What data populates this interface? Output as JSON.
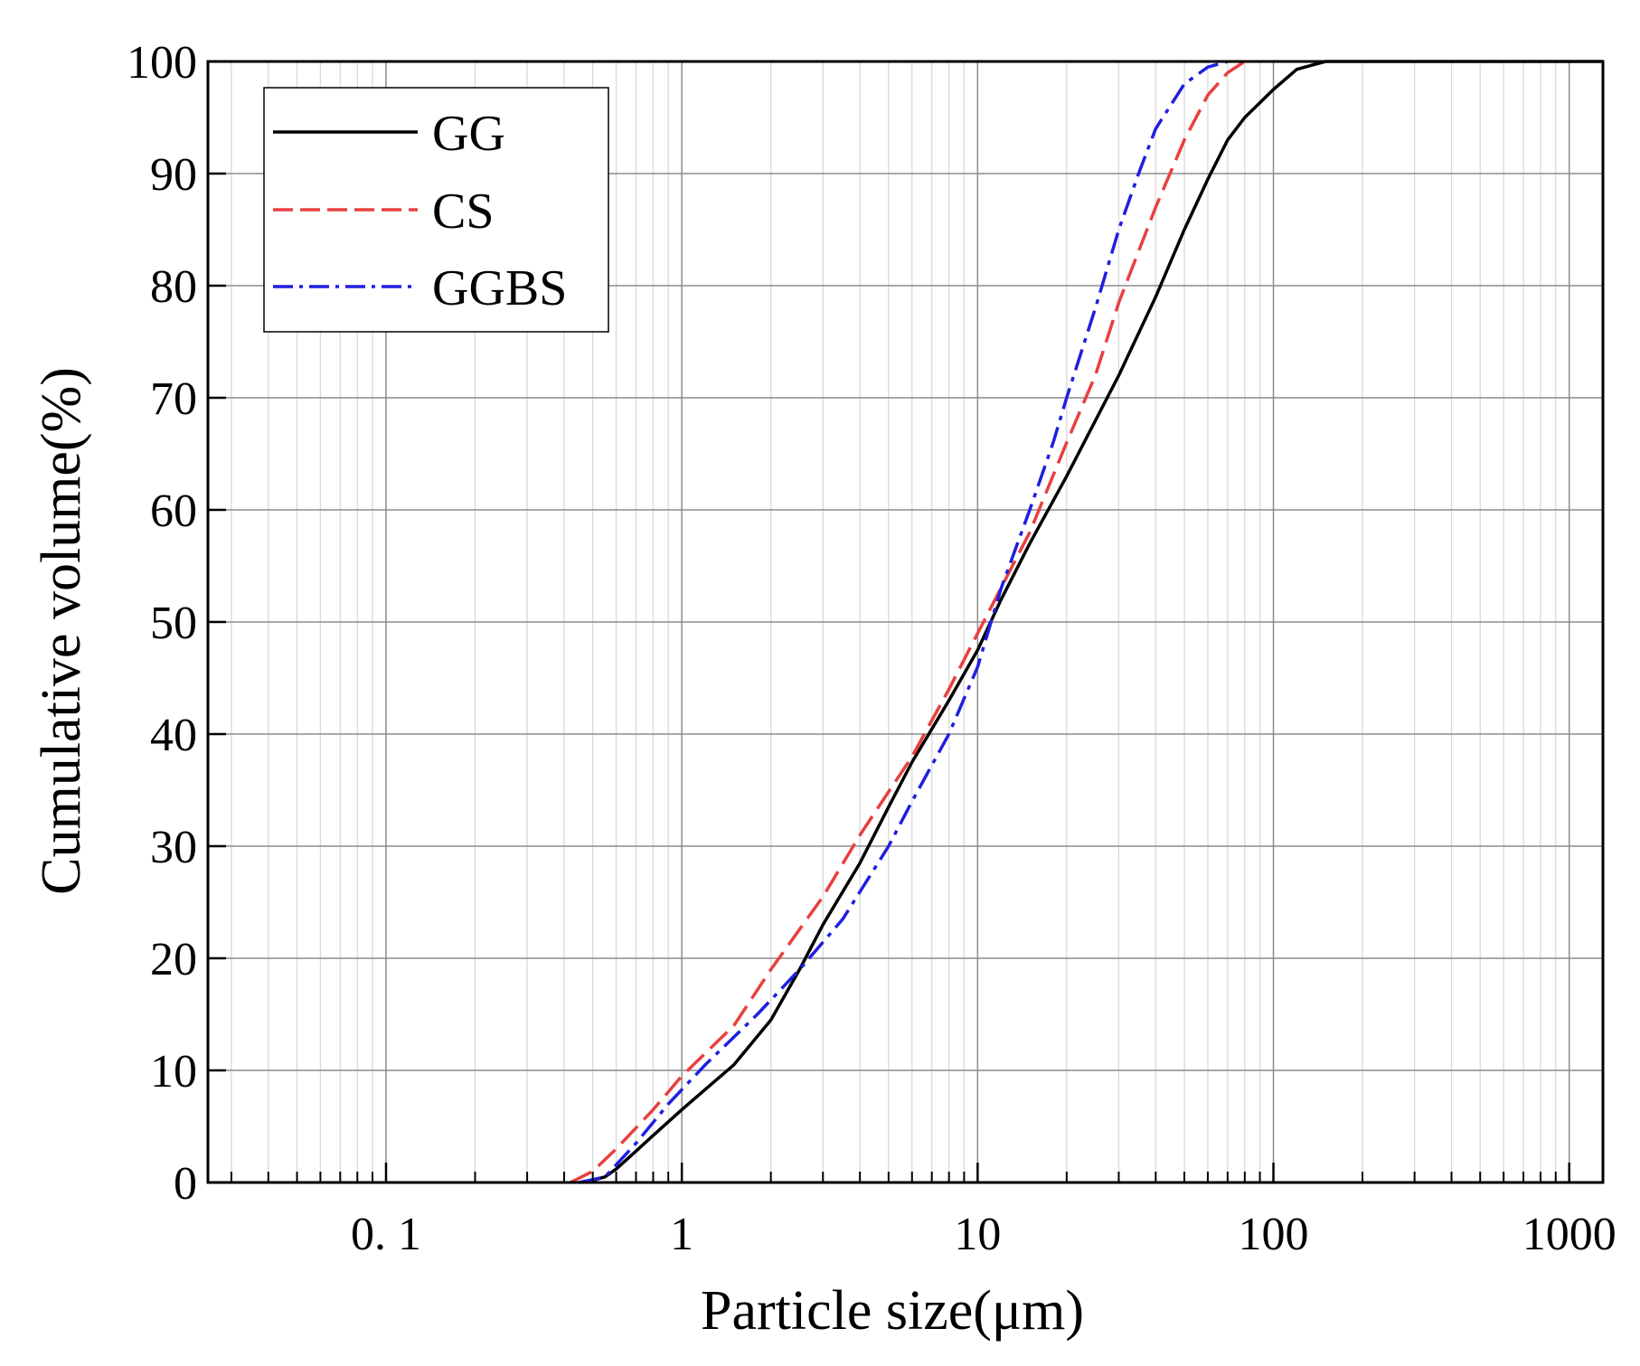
{
  "chart_data": {
    "type": "line",
    "title": "",
    "xlabel": "Particle size(μm)",
    "ylabel": "Cumulative volume(%)",
    "x_scale": "log",
    "xlim": [
      0.025,
      1300
    ],
    "ylim": [
      0,
      100
    ],
    "grid": true,
    "legend_position": "top-left",
    "x_ticks": [
      {
        "value": 0.1,
        "label": "0. 1"
      },
      {
        "value": 1,
        "label": "1"
      },
      {
        "value": 10,
        "label": "10"
      },
      {
        "value": 100,
        "label": "100"
      },
      {
        "value": 1000,
        "label": "1000"
      }
    ],
    "y_ticks": [
      {
        "value": 0,
        "label": "0"
      },
      {
        "value": 10,
        "label": "10"
      },
      {
        "value": 20,
        "label": "20"
      },
      {
        "value": 30,
        "label": "30"
      },
      {
        "value": 40,
        "label": "40"
      },
      {
        "value": 50,
        "label": "50"
      },
      {
        "value": 60,
        "label": "60"
      },
      {
        "value": 70,
        "label": "70"
      },
      {
        "value": 80,
        "label": "80"
      },
      {
        "value": 90,
        "label": "90"
      },
      {
        "value": 100,
        "label": "100"
      }
    ],
    "series": [
      {
        "name": "GG",
        "color": "#000000",
        "style": "solid",
        "points": [
          [
            0.45,
            0
          ],
          [
            0.5,
            0.2
          ],
          [
            0.55,
            0.5
          ],
          [
            0.6,
            1.2
          ],
          [
            0.7,
            2.8
          ],
          [
            0.8,
            4.2
          ],
          [
            1.0,
            6.5
          ],
          [
            1.2,
            8.3
          ],
          [
            1.5,
            10.5
          ],
          [
            2.0,
            14.5
          ],
          [
            2.5,
            19
          ],
          [
            3.0,
            23
          ],
          [
            4.0,
            28.5
          ],
          [
            5.0,
            33.5
          ],
          [
            6.0,
            37.5
          ],
          [
            8.0,
            43
          ],
          [
            10.0,
            47.5
          ],
          [
            12.0,
            52
          ],
          [
            15.0,
            57
          ],
          [
            20.0,
            63
          ],
          [
            30.0,
            72
          ],
          [
            40.0,
            79
          ],
          [
            50.0,
            85
          ],
          [
            60.0,
            89.5
          ],
          [
            70.0,
            93
          ],
          [
            80.0,
            95
          ],
          [
            100.0,
            97.5
          ],
          [
            120.0,
            99.3
          ],
          [
            150.0,
            100
          ],
          [
            1300,
            100
          ]
        ]
      },
      {
        "name": "CS",
        "color": "#e8403f",
        "style": "dashed",
        "points": [
          [
            0.42,
            0
          ],
          [
            0.5,
            1
          ],
          [
            0.6,
            3
          ],
          [
            0.8,
            6.5
          ],
          [
            1.0,
            9.5
          ],
          [
            1.5,
            14
          ],
          [
            2.0,
            19
          ],
          [
            3.0,
            25.5
          ],
          [
            4.0,
            31
          ],
          [
            6.0,
            38
          ],
          [
            8.0,
            44
          ],
          [
            10.0,
            49
          ],
          [
            15.0,
            58
          ],
          [
            20.0,
            66
          ],
          [
            25.0,
            72
          ],
          [
            30.0,
            78.5
          ],
          [
            40.0,
            87
          ],
          [
            50.0,
            93
          ],
          [
            60.0,
            97
          ],
          [
            70.0,
            99
          ],
          [
            80.0,
            100
          ]
        ]
      },
      {
        "name": "GGBS",
        "color": "#1f1fe0",
        "style": "dashdot",
        "points": [
          [
            0.45,
            0
          ],
          [
            0.55,
            0.5
          ],
          [
            0.7,
            3.5
          ],
          [
            0.9,
            7
          ],
          [
            1.2,
            10.5
          ],
          [
            1.8,
            15
          ],
          [
            2.5,
            19
          ],
          [
            3.5,
            23.5
          ],
          [
            5.0,
            30
          ],
          [
            6.0,
            34
          ],
          [
            8.0,
            40
          ],
          [
            10.0,
            46
          ],
          [
            12.0,
            53
          ],
          [
            15.0,
            60
          ],
          [
            18.0,
            66
          ],
          [
            20.0,
            70
          ],
          [
            25.0,
            78
          ],
          [
            30.0,
            85
          ],
          [
            35.0,
            90
          ],
          [
            40.0,
            94
          ],
          [
            50.0,
            98
          ],
          [
            60.0,
            99.5
          ],
          [
            70.0,
            100
          ]
        ]
      }
    ]
  }
}
